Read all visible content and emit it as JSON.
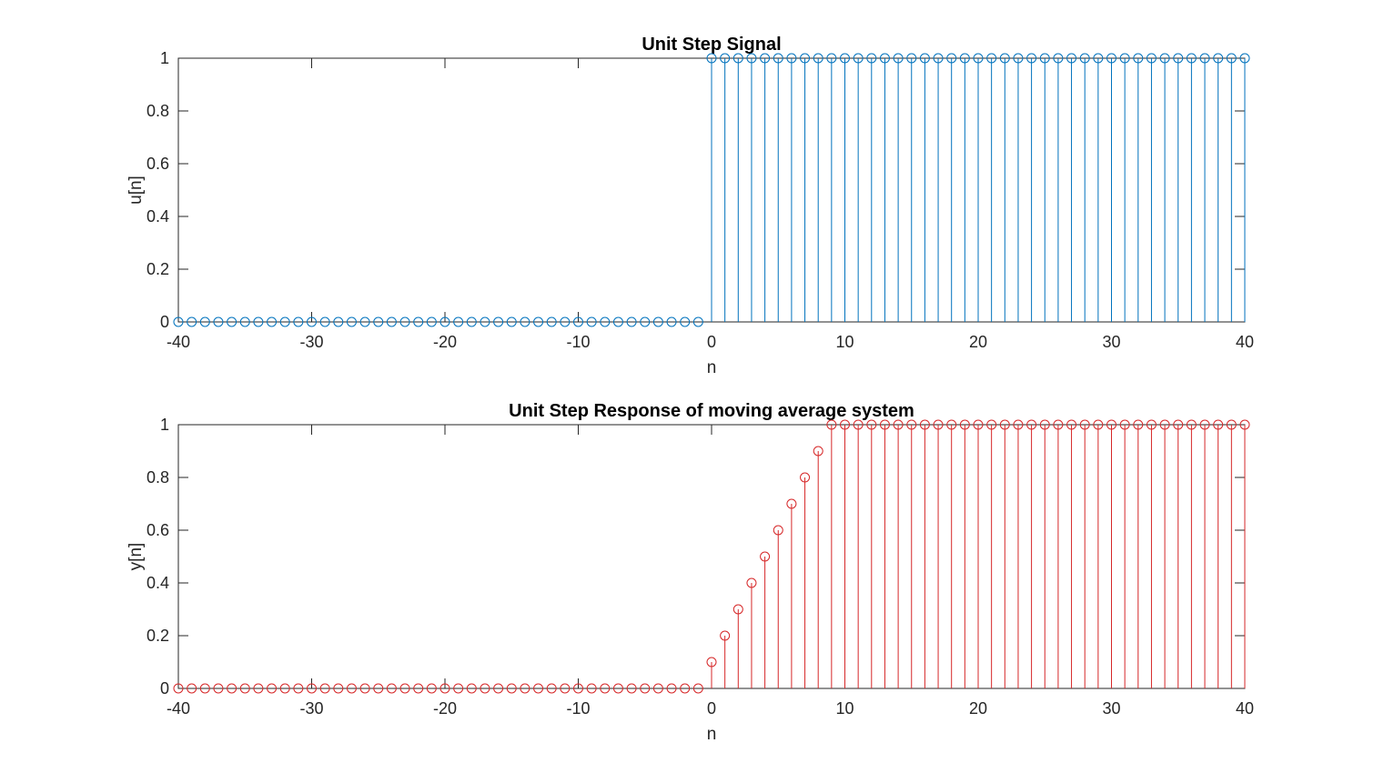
{
  "chart_data": [
    {
      "type": "stem",
      "title": "Unit Step Signal",
      "xlabel": "n",
      "ylabel": "u[n]",
      "xlim": [
        -40,
        40
      ],
      "ylim": [
        0,
        1
      ],
      "xticks": [
        -40,
        -30,
        -20,
        -10,
        0,
        10,
        20,
        30,
        40
      ],
      "yticks": [
        0,
        0.2,
        0.4,
        0.6,
        0.8,
        1
      ],
      "xtick_labels": [
        "-40",
        "-30",
        "-20",
        "-10",
        "0",
        "10",
        "20",
        "30",
        "40"
      ],
      "ytick_labels": [
        "0",
        "0.2",
        "0.4",
        "0.6",
        "0.8",
        "1"
      ],
      "grid": false,
      "marker": "circle",
      "color": "#0072BD",
      "x": [
        -40,
        -39,
        -38,
        -37,
        -36,
        -35,
        -34,
        -33,
        -32,
        -31,
        -30,
        -29,
        -28,
        -27,
        -26,
        -25,
        -24,
        -23,
        -22,
        -21,
        -20,
        -19,
        -18,
        -17,
        -16,
        -15,
        -14,
        -13,
        -12,
        -11,
        -10,
        -9,
        -8,
        -7,
        -6,
        -5,
        -4,
        -3,
        -2,
        -1,
        0,
        1,
        2,
        3,
        4,
        5,
        6,
        7,
        8,
        9,
        10,
        11,
        12,
        13,
        14,
        15,
        16,
        17,
        18,
        19,
        20,
        21,
        22,
        23,
        24,
        25,
        26,
        27,
        28,
        29,
        30,
        31,
        32,
        33,
        34,
        35,
        36,
        37,
        38,
        39,
        40
      ],
      "y": [
        0,
        0,
        0,
        0,
        0,
        0,
        0,
        0,
        0,
        0,
        0,
        0,
        0,
        0,
        0,
        0,
        0,
        0,
        0,
        0,
        0,
        0,
        0,
        0,
        0,
        0,
        0,
        0,
        0,
        0,
        0,
        0,
        0,
        0,
        0,
        0,
        0,
        0,
        0,
        0,
        1,
        1,
        1,
        1,
        1,
        1,
        1,
        1,
        1,
        1,
        1,
        1,
        1,
        1,
        1,
        1,
        1,
        1,
        1,
        1,
        1,
        1,
        1,
        1,
        1,
        1,
        1,
        1,
        1,
        1,
        1,
        1,
        1,
        1,
        1,
        1,
        1,
        1,
        1,
        1,
        1
      ]
    },
    {
      "type": "stem",
      "title": "Unit Step Response of moving average system",
      "xlabel": "n",
      "ylabel": "y[n]",
      "xlim": [
        -40,
        40
      ],
      "ylim": [
        0,
        1
      ],
      "xticks": [
        -40,
        -30,
        -20,
        -10,
        0,
        10,
        20,
        30,
        40
      ],
      "yticks": [
        0,
        0.2,
        0.4,
        0.6,
        0.8,
        1
      ],
      "xtick_labels": [
        "-40",
        "-30",
        "-20",
        "-10",
        "0",
        "10",
        "20",
        "30",
        "40"
      ],
      "ytick_labels": [
        "0",
        "0.2",
        "0.4",
        "0.6",
        "0.8",
        "1"
      ],
      "grid": false,
      "marker": "circle",
      "color": "#D62728",
      "x": [
        -40,
        -39,
        -38,
        -37,
        -36,
        -35,
        -34,
        -33,
        -32,
        -31,
        -30,
        -29,
        -28,
        -27,
        -26,
        -25,
        -24,
        -23,
        -22,
        -21,
        -20,
        -19,
        -18,
        -17,
        -16,
        -15,
        -14,
        -13,
        -12,
        -11,
        -10,
        -9,
        -8,
        -7,
        -6,
        -5,
        -4,
        -3,
        -2,
        -1,
        0,
        1,
        2,
        3,
        4,
        5,
        6,
        7,
        8,
        9,
        10,
        11,
        12,
        13,
        14,
        15,
        16,
        17,
        18,
        19,
        20,
        21,
        22,
        23,
        24,
        25,
        26,
        27,
        28,
        29,
        30,
        31,
        32,
        33,
        34,
        35,
        36,
        37,
        38,
        39,
        40
      ],
      "y": [
        0,
        0,
        0,
        0,
        0,
        0,
        0,
        0,
        0,
        0,
        0,
        0,
        0,
        0,
        0,
        0,
        0,
        0,
        0,
        0,
        0,
        0,
        0,
        0,
        0,
        0,
        0,
        0,
        0,
        0,
        0,
        0,
        0,
        0,
        0,
        0,
        0,
        0,
        0,
        0,
        0.1,
        0.2,
        0.3,
        0.4,
        0.5,
        0.6,
        0.7,
        0.8,
        0.9,
        1,
        1,
        1,
        1,
        1,
        1,
        1,
        1,
        1,
        1,
        1,
        1,
        1,
        1,
        1,
        1,
        1,
        1,
        1,
        1,
        1,
        1,
        1,
        1,
        1,
        1,
        1,
        1,
        1,
        1,
        1,
        1
      ]
    }
  ]
}
